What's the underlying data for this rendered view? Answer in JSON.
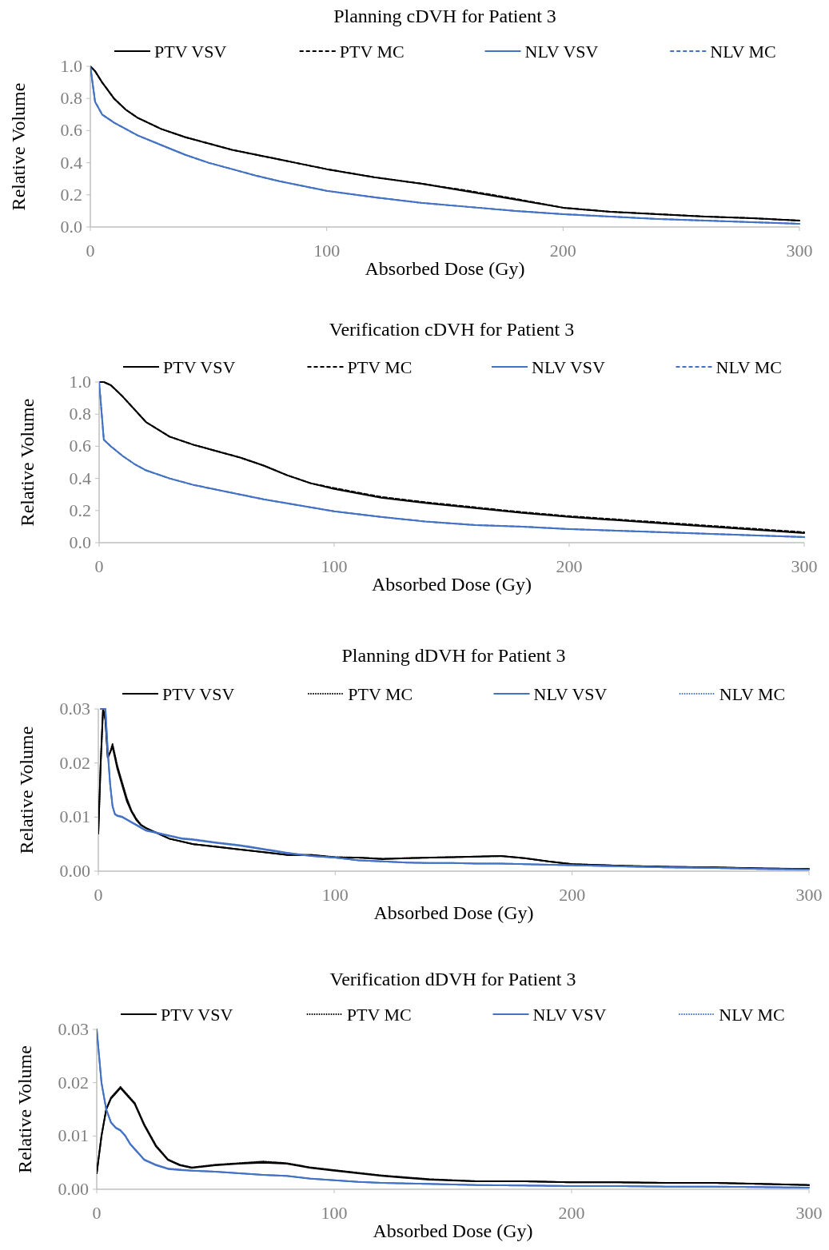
{
  "chart_data": [
    {
      "type": "line",
      "title": "Planning cDVH for Patient 3",
      "xlabel": "Absorbed Dose (Gy)",
      "ylabel": "Relative Volume",
      "legend": "top",
      "grid": false,
      "x": [
        0,
        2,
        5,
        10,
        15,
        20,
        30,
        40,
        50,
        60,
        70,
        80,
        90,
        100,
        120,
        140,
        160,
        180,
        200,
        220,
        240,
        260,
        280,
        300
      ],
      "xlim": [
        0,
        300
      ],
      "xticks": [
        0,
        100,
        200,
        300
      ],
      "ylim": [
        0,
        1
      ],
      "yticks": [
        {
          "value": 0,
          "label": "0.0"
        },
        {
          "value": 0.2,
          "label": "0.2"
        },
        {
          "value": 0.4,
          "label": "0.4"
        },
        {
          "value": 0.6,
          "label": "0.6"
        },
        {
          "value": 0.8,
          "label": "0.8"
        },
        {
          "value": 1,
          "label": "1.0"
        }
      ],
      "series": [
        {
          "name": "PTV VSV",
          "color": "#000000",
          "line_style": "solid",
          "values": [
            1.0,
            0.97,
            0.9,
            0.8,
            0.73,
            0.68,
            0.61,
            0.56,
            0.52,
            0.48,
            0.45,
            0.42,
            0.39,
            0.36,
            0.31,
            0.27,
            0.22,
            0.17,
            0.12,
            0.095,
            0.08,
            0.065,
            0.055,
            0.04
          ]
        },
        {
          "name": "PTV MC",
          "color": "#000000",
          "line_style": "dashed",
          "values": [
            1.0,
            0.97,
            0.9,
            0.8,
            0.73,
            0.68,
            0.61,
            0.56,
            0.52,
            0.48,
            0.45,
            0.42,
            0.39,
            0.36,
            0.31,
            0.27,
            0.225,
            0.175,
            0.12,
            0.095,
            0.08,
            0.065,
            0.055,
            0.04
          ]
        },
        {
          "name": "NLV VSV",
          "color": "#4472c4",
          "line_style": "solid",
          "values": [
            1.0,
            0.78,
            0.7,
            0.65,
            0.61,
            0.57,
            0.51,
            0.45,
            0.4,
            0.36,
            0.32,
            0.285,
            0.255,
            0.225,
            0.185,
            0.15,
            0.125,
            0.1,
            0.08,
            0.065,
            0.05,
            0.04,
            0.03,
            0.02
          ]
        },
        {
          "name": "NLV MC",
          "color": "#4472c4",
          "line_style": "dashed",
          "values": [
            1.0,
            0.78,
            0.7,
            0.65,
            0.61,
            0.57,
            0.51,
            0.45,
            0.4,
            0.36,
            0.32,
            0.285,
            0.255,
            0.225,
            0.185,
            0.15,
            0.125,
            0.1,
            0.08,
            0.065,
            0.05,
            0.04,
            0.03,
            0.02
          ]
        }
      ]
    },
    {
      "type": "line",
      "title": "Verification cDVH for Patient 3",
      "xlabel": "Absorbed Dose (Gy)",
      "ylabel": "Relative Volume",
      "legend": "top",
      "grid": false,
      "x": [
        0,
        2,
        5,
        10,
        15,
        20,
        30,
        40,
        50,
        60,
        70,
        80,
        90,
        100,
        120,
        140,
        160,
        180,
        200,
        220,
        240,
        260,
        280,
        300
      ],
      "xlim": [
        0,
        300
      ],
      "xticks": [
        0,
        100,
        200,
        300
      ],
      "ylim": [
        0,
        1
      ],
      "yticks": [
        {
          "value": 0,
          "label": "0.0"
        },
        {
          "value": 0.2,
          "label": "0.2"
        },
        {
          "value": 0.4,
          "label": "0.4"
        },
        {
          "value": 0.6,
          "label": "0.6"
        },
        {
          "value": 0.8,
          "label": "0.8"
        },
        {
          "value": 1,
          "label": "1.0"
        }
      ],
      "series": [
        {
          "name": "PTV VSV",
          "color": "#000000",
          "line_style": "solid",
          "values": [
            1.0,
            1.0,
            0.98,
            0.91,
            0.83,
            0.75,
            0.66,
            0.61,
            0.57,
            0.53,
            0.48,
            0.42,
            0.37,
            0.335,
            0.28,
            0.245,
            0.215,
            0.185,
            0.16,
            0.14,
            0.12,
            0.1,
            0.08,
            0.06
          ]
        },
        {
          "name": "PTV MC",
          "color": "#000000",
          "line_style": "dashed",
          "values": [
            1.0,
            1.0,
            0.98,
            0.91,
            0.83,
            0.75,
            0.66,
            0.61,
            0.57,
            0.53,
            0.48,
            0.42,
            0.37,
            0.34,
            0.285,
            0.25,
            0.22,
            0.19,
            0.165,
            0.145,
            0.125,
            0.105,
            0.085,
            0.065
          ]
        },
        {
          "name": "NLV VSV",
          "color": "#4472c4",
          "line_style": "solid",
          "values": [
            1.0,
            0.64,
            0.6,
            0.54,
            0.49,
            0.45,
            0.4,
            0.36,
            0.33,
            0.3,
            0.27,
            0.245,
            0.22,
            0.195,
            0.16,
            0.13,
            0.11,
            0.1,
            0.085,
            0.075,
            0.065,
            0.055,
            0.045,
            0.035
          ]
        },
        {
          "name": "NLV MC",
          "color": "#4472c4",
          "line_style": "dashed",
          "values": [
            1.0,
            0.64,
            0.6,
            0.54,
            0.49,
            0.45,
            0.4,
            0.36,
            0.33,
            0.3,
            0.27,
            0.245,
            0.22,
            0.195,
            0.16,
            0.13,
            0.11,
            0.1,
            0.085,
            0.075,
            0.065,
            0.055,
            0.045,
            0.035
          ]
        }
      ]
    },
    {
      "type": "line",
      "title": "Planning dDVH for Patient 3",
      "xlabel": "Absorbed Dose (Gy)",
      "ylabel": "Relative Volume",
      "legend": "top",
      "grid": false,
      "x": [
        0,
        1,
        2,
        3,
        4,
        5,
        6,
        7,
        8,
        10,
        12,
        14,
        16,
        18,
        20,
        25,
        30,
        35,
        40,
        50,
        60,
        70,
        80,
        90,
        100,
        110,
        120,
        130,
        140,
        150,
        160,
        170,
        180,
        190,
        200,
        220,
        240,
        260,
        280,
        300
      ],
      "xlim": [
        0,
        300
      ],
      "xticks": [
        0,
        100,
        200,
        300
      ],
      "ylim": [
        0,
        0.03
      ],
      "yticks": [
        {
          "value": 0,
          "label": "0.00"
        },
        {
          "value": 0.01,
          "label": "0.01"
        },
        {
          "value": 0.02,
          "label": "0.02"
        },
        {
          "value": 0.03,
          "label": "0.03"
        }
      ],
      "series": [
        {
          "name": "PTV VSV",
          "color": "#000000",
          "line_style": "solid",
          "values": [
            0.007,
            0.02,
            0.03,
            0.028,
            0.021,
            0.022,
            0.023,
            0.021,
            0.019,
            0.016,
            0.013,
            0.011,
            0.0095,
            0.0085,
            0.008,
            0.007,
            0.006,
            0.0055,
            0.005,
            0.0045,
            0.004,
            0.0035,
            0.003,
            0.003,
            0.0025,
            0.0025,
            0.0022,
            0.0024,
            0.0025,
            0.0026,
            0.0027,
            0.0028,
            0.0024,
            0.0018,
            0.0013,
            0.001,
            0.0008,
            0.0007,
            0.0005,
            0.0004
          ]
        },
        {
          "name": "PTV MC",
          "color": "#000000",
          "line_style": "dotted",
          "values": [
            0.007,
            0.02,
            0.03,
            0.028,
            0.021,
            0.022,
            0.0235,
            0.0215,
            0.0195,
            0.0165,
            0.0135,
            0.0112,
            0.0097,
            0.0086,
            0.008,
            0.007,
            0.006,
            0.0055,
            0.005,
            0.0045,
            0.004,
            0.0035,
            0.003,
            0.003,
            0.0026,
            0.0025,
            0.0023,
            0.0024,
            0.0025,
            0.0026,
            0.0027,
            0.0028,
            0.0024,
            0.0018,
            0.0013,
            0.001,
            0.0008,
            0.0007,
            0.0005,
            0.0004
          ]
        },
        {
          "name": "NLV VSV",
          "color": "#4472c4",
          "line_style": "solid",
          "values": [
            null,
            0.03,
            0.03,
            0.03,
            0.022,
            0.016,
            0.012,
            0.0105,
            0.0102,
            0.01,
            0.0095,
            0.009,
            0.0085,
            0.008,
            0.0075,
            0.007,
            0.0065,
            0.006,
            0.0058,
            0.0052,
            0.0047,
            0.004,
            0.0033,
            0.0028,
            0.0025,
            0.002,
            0.0018,
            0.0016,
            0.0015,
            0.0015,
            0.0014,
            0.0014,
            0.0013,
            0.0012,
            0.0011,
            0.0009,
            0.0007,
            0.0006,
            0.0004,
            0.0003
          ]
        },
        {
          "name": "NLV MC",
          "color": "#4472c4",
          "line_style": "dotted",
          "values": [
            null,
            0.03,
            0.03,
            0.03,
            0.022,
            0.016,
            0.012,
            0.0106,
            0.0103,
            0.0101,
            0.0096,
            0.0091,
            0.0086,
            0.0081,
            0.0076,
            0.0071,
            0.0066,
            0.0061,
            0.0059,
            0.0053,
            0.0048,
            0.0041,
            0.0034,
            0.0028,
            0.0025,
            0.002,
            0.0018,
            0.0016,
            0.0015,
            0.0015,
            0.0014,
            0.0014,
            0.0013,
            0.0012,
            0.0011,
            0.0009,
            0.0007,
            0.0006,
            0.0004,
            0.0003
          ]
        }
      ]
    },
    {
      "type": "line",
      "title": "Verification dDVH for Patient 3",
      "xlabel": "Absorbed Dose (Gy)",
      "ylabel": "Relative Volume",
      "legend": "top",
      "grid": false,
      "x": [
        0,
        2,
        4,
        6,
        8,
        10,
        12,
        14,
        16,
        18,
        20,
        25,
        30,
        35,
        40,
        50,
        60,
        70,
        80,
        90,
        100,
        110,
        120,
        140,
        160,
        180,
        200,
        220,
        240,
        260,
        280,
        300
      ],
      "xlim": [
        0,
        300
      ],
      "xticks": [
        0,
        100,
        200,
        300
      ],
      "ylim": [
        0,
        0.03
      ],
      "yticks": [
        {
          "value": 0,
          "label": "0.00"
        },
        {
          "value": 0.01,
          "label": "0.01"
        },
        {
          "value": 0.02,
          "label": "0.02"
        },
        {
          "value": 0.03,
          "label": "0.03"
        }
      ],
      "series": [
        {
          "name": "PTV VSV",
          "color": "#000000",
          "line_style": "solid",
          "values": [
            0.003,
            0.01,
            0.015,
            0.017,
            0.018,
            0.019,
            0.018,
            0.017,
            0.016,
            0.014,
            0.012,
            0.008,
            0.0055,
            0.0045,
            0.004,
            0.0045,
            0.0048,
            0.005,
            0.0048,
            0.004,
            0.0035,
            0.003,
            0.0025,
            0.0018,
            0.0015,
            0.0015,
            0.0013,
            0.0013,
            0.0012,
            0.0012,
            0.001,
            0.0008
          ]
        },
        {
          "name": "PTV MC",
          "color": "#000000",
          "line_style": "dotted",
          "values": [
            0.003,
            0.01,
            0.015,
            0.0172,
            0.0182,
            0.0192,
            0.0182,
            0.0172,
            0.0162,
            0.0142,
            0.0122,
            0.0082,
            0.0056,
            0.0046,
            0.0041,
            0.0046,
            0.0049,
            0.0052,
            0.0049,
            0.0041,
            0.0036,
            0.0031,
            0.0026,
            0.0019,
            0.0015,
            0.0015,
            0.0013,
            0.0013,
            0.0012,
            0.0012,
            0.001,
            0.0008
          ]
        },
        {
          "name": "NLV VSV",
          "color": "#4472c4",
          "line_style": "solid",
          "values": [
            0.03,
            0.02,
            0.015,
            0.0125,
            0.0115,
            0.011,
            0.01,
            0.0085,
            0.0075,
            0.0065,
            0.0055,
            0.0045,
            0.0038,
            0.0036,
            0.0035,
            0.0033,
            0.003,
            0.0027,
            0.0025,
            0.002,
            0.0017,
            0.0014,
            0.0012,
            0.001,
            0.0008,
            0.0007,
            0.0006,
            0.0006,
            0.0005,
            0.0005,
            0.0004,
            0.0003
          ]
        },
        {
          "name": "NLV MC",
          "color": "#4472c4",
          "line_style": "dotted",
          "values": [
            0.03,
            0.02,
            0.015,
            0.0126,
            0.0116,
            0.0111,
            0.0101,
            0.0086,
            0.0076,
            0.0066,
            0.0056,
            0.0046,
            0.0039,
            0.0037,
            0.0035,
            0.0033,
            0.003,
            0.0027,
            0.0025,
            0.002,
            0.0017,
            0.0014,
            0.0012,
            0.001,
            0.0008,
            0.0007,
            0.0006,
            0.0006,
            0.0005,
            0.0005,
            0.0004,
            0.0003
          ]
        }
      ]
    }
  ]
}
